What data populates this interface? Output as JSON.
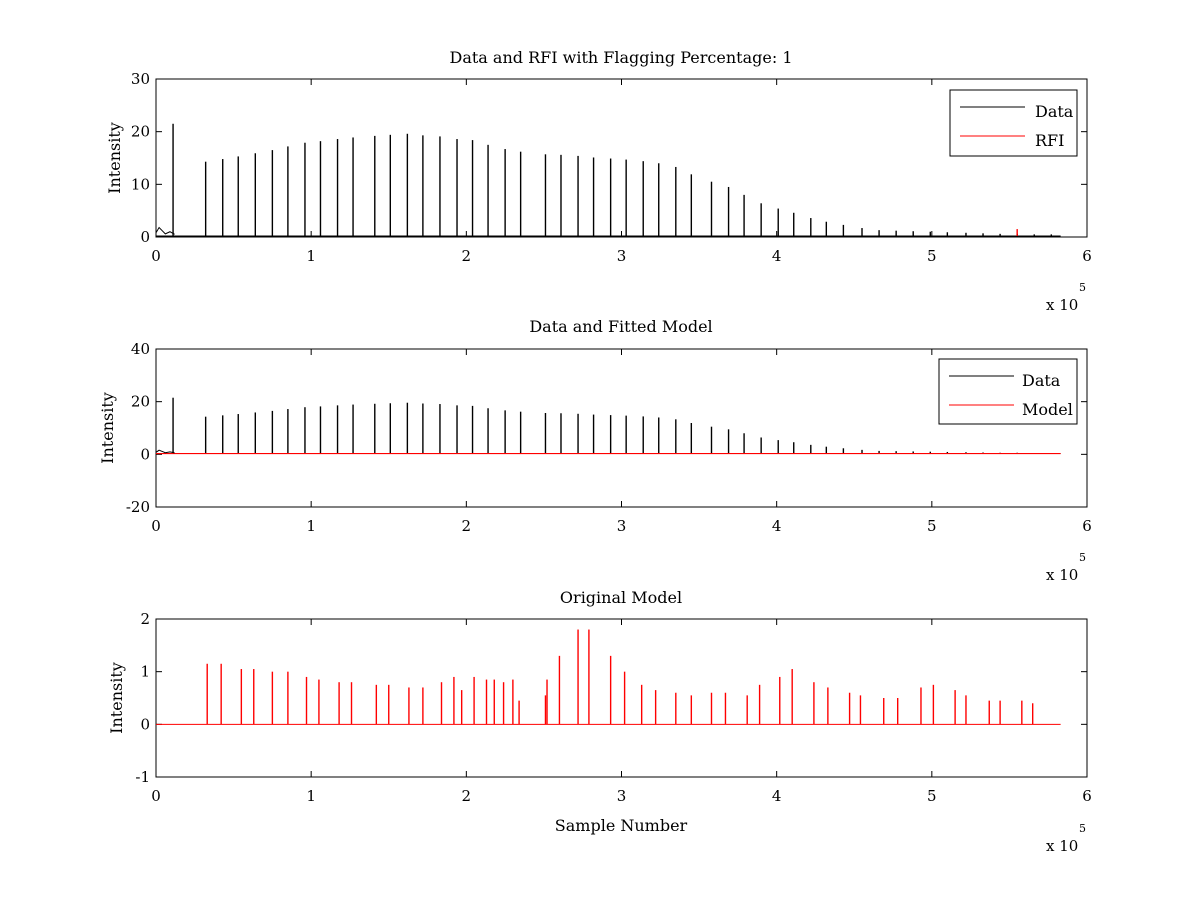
{
  "figure": {
    "background": "#ffffff",
    "data_color": "#000000",
    "model_color": "#ff0000"
  },
  "chart_data": [
    {
      "type": "line",
      "title": "Data and RFI with Flagging Percentage: 1",
      "xlabel": "",
      "ylabel": "Intensity",
      "xlim": [
        0,
        6
      ],
      "ylim": [
        0,
        30
      ],
      "x_exponent_base": "x 10",
      "x_exponent_power": "5",
      "xticks": [
        0,
        1,
        2,
        3,
        4,
        5,
        6
      ],
      "yticks": [
        0,
        10,
        20,
        30
      ],
      "legend": {
        "position": "top-right",
        "entries": [
          "Data",
          "RFI"
        ]
      },
      "baseline": 0.2,
      "series": [
        {
          "name": "Data",
          "color": "#000000",
          "spike_x": [
            0.11,
            0.32,
            0.43,
            0.53,
            0.64,
            0.75,
            0.85,
            0.96,
            1.06,
            1.17,
            1.27,
            1.41,
            1.51,
            1.62,
            1.72,
            1.83,
            1.94,
            2.04,
            2.14,
            2.25,
            2.35,
            2.51,
            2.61,
            2.72,
            2.82,
            2.93,
            3.03,
            3.14,
            3.24,
            3.35,
            3.45,
            3.58,
            3.69,
            3.79,
            3.9,
            4.01,
            4.11,
            4.22,
            4.32,
            4.43,
            4.55,
            4.66,
            4.77,
            4.88,
            4.99,
            5.1,
            5.22,
            5.33,
            5.44,
            5.55,
            5.66,
            5.77
          ],
          "spike_y": [
            21.5,
            14.3,
            14.8,
            15.3,
            15.9,
            16.5,
            17.2,
            17.9,
            18.2,
            18.6,
            18.9,
            19.2,
            19.4,
            19.6,
            19.3,
            19.1,
            18.6,
            18.4,
            17.5,
            16.7,
            16.2,
            15.7,
            15.6,
            15.4,
            15.1,
            14.9,
            14.7,
            14.4,
            14.0,
            13.3,
            11.9,
            10.5,
            9.5,
            8.0,
            6.4,
            5.4,
            4.6,
            3.6,
            2.9,
            2.3,
            1.7,
            1.3,
            1.2,
            1.1,
            1.0,
            0.9,
            0.8,
            0.7,
            0.6,
            0.6,
            0.5,
            0.5
          ]
        },
        {
          "name": "RFI",
          "color": "#ff0000",
          "spike_x": [
            5.55
          ],
          "spike_y": [
            1.5
          ]
        }
      ]
    },
    {
      "type": "line",
      "title": "Data and Fitted Model",
      "xlabel": "",
      "ylabel": "Intensity",
      "xlim": [
        0,
        6
      ],
      "ylim": [
        -20,
        40
      ],
      "x_exponent_base": "x 10",
      "x_exponent_power": "5",
      "xticks": [
        0,
        1,
        2,
        3,
        4,
        5,
        6
      ],
      "yticks": [
        -20,
        0,
        20,
        40
      ],
      "legend": {
        "position": "top-right",
        "entries": [
          "Data",
          "Model"
        ]
      },
      "baseline": 0.3,
      "series": [
        {
          "name": "Data",
          "color": "#000000",
          "spike_x": [
            0.11,
            0.32,
            0.43,
            0.53,
            0.64,
            0.75,
            0.85,
            0.96,
            1.06,
            1.17,
            1.27,
            1.41,
            1.51,
            1.62,
            1.72,
            1.83,
            1.94,
            2.04,
            2.14,
            2.25,
            2.35,
            2.51,
            2.61,
            2.72,
            2.82,
            2.93,
            3.03,
            3.14,
            3.24,
            3.35,
            3.45,
            3.58,
            3.69,
            3.79,
            3.9,
            4.01,
            4.11,
            4.22,
            4.32,
            4.43,
            4.55,
            4.66,
            4.77,
            4.88,
            4.99,
            5.1,
            5.22,
            5.33,
            5.44,
            5.55,
            5.66,
            5.77
          ],
          "spike_y": [
            21.5,
            14.3,
            14.8,
            15.3,
            15.9,
            16.5,
            17.2,
            17.9,
            18.2,
            18.6,
            18.9,
            19.2,
            19.4,
            19.6,
            19.3,
            19.1,
            18.6,
            18.4,
            17.5,
            16.7,
            16.2,
            15.7,
            15.6,
            15.4,
            15.1,
            14.9,
            14.7,
            14.4,
            14.0,
            13.3,
            11.9,
            10.5,
            9.5,
            8.0,
            6.4,
            5.4,
            4.6,
            3.6,
            2.9,
            2.3,
            1.7,
            1.3,
            1.2,
            1.1,
            1.0,
            0.9,
            0.8,
            0.7,
            0.6,
            0.6,
            0.5,
            0.5
          ]
        },
        {
          "name": "Model",
          "color": "#ff0000",
          "line_x": [
            0,
            5.83
          ],
          "line_y": [
            0.3,
            0.3
          ]
        }
      ]
    },
    {
      "type": "line",
      "title": "Original Model",
      "xlabel": "Sample Number",
      "ylabel": "Intensity",
      "xlim": [
        0,
        6
      ],
      "ylim": [
        -1,
        2
      ],
      "x_exponent_base": "x 10",
      "x_exponent_power": "5",
      "xticks": [
        0,
        1,
        2,
        3,
        4,
        5,
        6
      ],
      "yticks": [
        -1,
        0,
        1,
        2
      ],
      "legend": null,
      "baseline": 0,
      "series": [
        {
          "name": "",
          "color": "#ff0000",
          "spike_x": [
            0.33,
            0.42,
            0.55,
            0.63,
            0.75,
            0.85,
            0.97,
            1.05,
            1.18,
            1.26,
            1.42,
            1.5,
            1.63,
            1.72,
            1.84,
            1.92,
            1.97,
            2.05,
            2.13,
            2.18,
            2.24,
            2.3,
            2.34,
            2.51,
            2.52,
            2.6,
            2.72,
            2.79,
            2.93,
            3.02,
            3.13,
            3.22,
            3.35,
            3.45,
            3.58,
            3.67,
            3.81,
            3.89,
            4.02,
            4.1,
            4.24,
            4.33,
            4.47,
            4.54,
            4.69,
            4.78,
            4.93,
            5.01,
            5.15,
            5.22,
            5.37,
            5.44,
            5.58,
            5.65
          ],
          "spike_y": [
            1.15,
            1.15,
            1.05,
            1.05,
            1.0,
            1.0,
            0.9,
            0.85,
            0.8,
            0.8,
            0.75,
            0.75,
            0.7,
            0.7,
            0.8,
            0.9,
            0.65,
            0.9,
            0.85,
            0.85,
            0.8,
            0.85,
            0.45,
            0.55,
            0.85,
            1.3,
            1.8,
            1.8,
            1.3,
            1.0,
            0.75,
            0.65,
            0.6,
            0.55,
            0.6,
            0.6,
            0.55,
            0.75,
            0.9,
            1.05,
            0.8,
            0.7,
            0.6,
            0.55,
            0.5,
            0.5,
            0.7,
            0.75,
            0.65,
            0.55,
            0.45,
            0.45,
            0.45,
            0.4
          ]
        }
      ]
    }
  ]
}
